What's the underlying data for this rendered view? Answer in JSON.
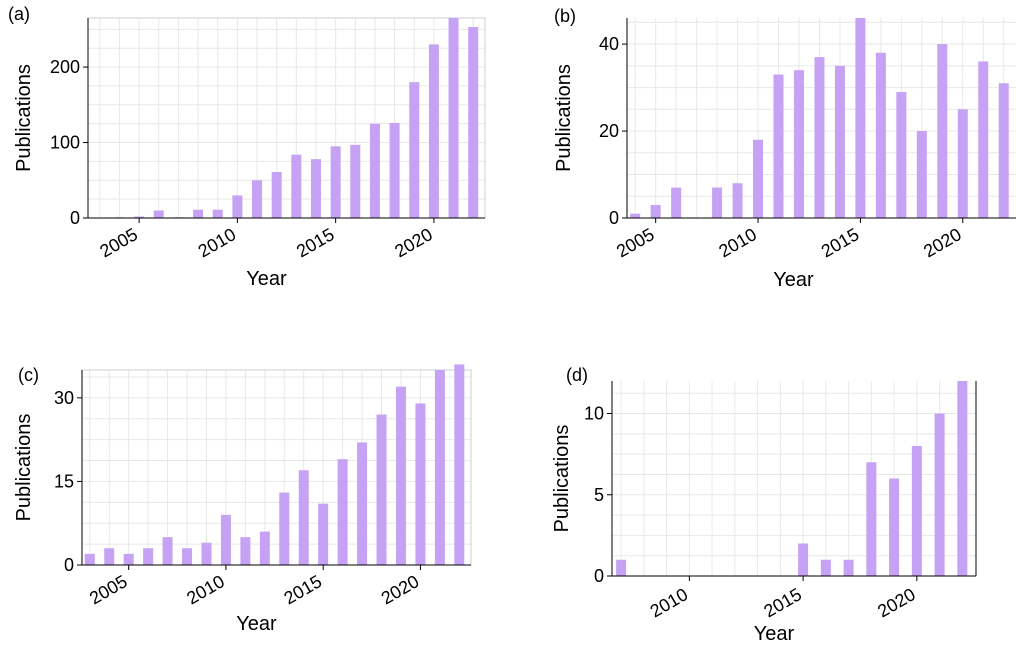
{
  "colors": {
    "bar": "#c6a2f4",
    "grid": "#e8e8e8",
    "axis": "#000000"
  },
  "chart_data": [
    {
      "panel": "(a)",
      "type": "bar",
      "xlabel": "Year",
      "ylabel": "Publications",
      "x": [
        2003,
        2004,
        2005,
        2006,
        2007,
        2008,
        2009,
        2010,
        2011,
        2012,
        2013,
        2014,
        2015,
        2016,
        2017,
        2018,
        2019,
        2020,
        2021,
        2022
      ],
      "values": [
        0,
        1,
        2,
        10,
        1,
        11,
        11,
        30,
        50,
        61,
        84,
        78,
        95,
        97,
        125,
        126,
        180,
        230,
        265,
        253
      ],
      "xlim": [
        2002.4,
        2022.6
      ],
      "ylim": [
        0,
        265
      ],
      "xticks": [
        2005,
        2010,
        2015,
        2020
      ],
      "yticks": [
        0,
        100,
        200
      ],
      "grid": true
    },
    {
      "panel": "(b)",
      "type": "bar",
      "xlabel": "Year",
      "ylabel": "Publications",
      "x": [
        2004,
        2005,
        2006,
        2008,
        2009,
        2010,
        2011,
        2012,
        2013,
        2014,
        2015,
        2016,
        2017,
        2018,
        2019,
        2020,
        2021,
        2022
      ],
      "values": [
        1,
        3,
        7,
        7,
        8,
        18,
        33,
        34,
        37,
        35,
        46,
        38,
        29,
        20,
        40,
        25,
        36,
        31
      ],
      "xlim": [
        2003.6,
        2022.6
      ],
      "ylim": [
        0,
        46
      ],
      "xticks": [
        2005,
        2010,
        2015,
        2020
      ],
      "yticks": [
        0,
        20,
        40
      ],
      "grid": true
    },
    {
      "panel": "(c)",
      "type": "bar",
      "xlabel": "Year",
      "ylabel": "Publications",
      "x": [
        2003,
        2004,
        2005,
        2006,
        2007,
        2008,
        2009,
        2010,
        2011,
        2012,
        2013,
        2014,
        2015,
        2016,
        2017,
        2018,
        2019,
        2020,
        2021,
        2022
      ],
      "values": [
        2,
        3,
        2,
        3,
        5,
        3,
        4,
        9,
        5,
        6,
        13,
        17,
        11,
        19,
        22,
        27,
        32,
        29,
        35,
        36
      ],
      "xlim": [
        2002.6,
        2022.6
      ],
      "ylim": [
        0,
        35
      ],
      "xticks": [
        2005,
        2010,
        2015,
        2020
      ],
      "yticks": [
        0,
        15,
        30
      ],
      "grid": true
    },
    {
      "panel": "(d)",
      "type": "bar",
      "xlabel": "Year",
      "ylabel": "Publications",
      "x": [
        2007,
        2015,
        2016,
        2017,
        2018,
        2019,
        2020,
        2021,
        2022
      ],
      "values": [
        1,
        2,
        1,
        1,
        7,
        6,
        8,
        10,
        12
      ],
      "xlim": [
        2006.6,
        2022.6
      ],
      "ylim": [
        0,
        12
      ],
      "xticks": [
        2010,
        2015,
        2020
      ],
      "yticks": [
        0,
        5,
        10
      ],
      "grid": true
    }
  ]
}
